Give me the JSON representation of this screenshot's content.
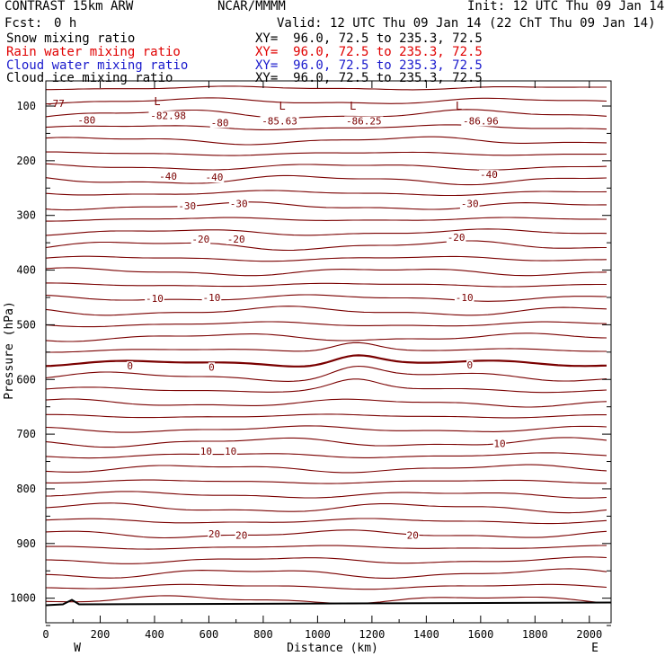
{
  "header": {
    "title": "CONTRAST 15km ARW",
    "center": "NCAR/MMMM",
    "init": "Init: 12 UTC Thu 09 Jan 14",
    "fcst_label": "Fcst:",
    "fcst_value": "0 h",
    "valid": "Valid: 12 UTC Thu 09 Jan 14 (22 ChT Thu 09 Jan 14)"
  },
  "fields": [
    {
      "name": "Snow mixing ratio",
      "xy": "XY=  96.0, 72.5 to 235.3, 72.5",
      "color": "#000000"
    },
    {
      "name": "Rain water mixing ratio",
      "xy": "XY=  96.0, 72.5 to 235.3, 72.5",
      "color": "#e00000"
    },
    {
      "name": "Cloud water mixing ratio",
      "xy": "XY=  96.0, 72.5 to 235.3, 72.5",
      "color": "#1a1acc"
    },
    {
      "name": "Cloud ice mixing ratio",
      "xy": "XY=  96.0, 72.5 to 235.3, 72.5",
      "color": "#000000"
    }
  ],
  "chart_data": {
    "type": "line",
    "xlabel": "Distance (km)",
    "ylabel": "Pressure (hPa)",
    "xlim": [
      0,
      2080
    ],
    "ylim": [
      1050,
      80
    ],
    "x_ticks": [
      "0",
      "200",
      "400",
      "600",
      "800",
      "1000",
      "1200",
      "1400",
      "1600",
      "1800",
      "2000"
    ],
    "y_ticks": [
      "100",
      "200",
      "300",
      "400",
      "500",
      "600",
      "700",
      "800",
      "900",
      "1000"
    ],
    "x_end_labels": {
      "left": "W",
      "right": "E"
    },
    "contour_color": "#7a0000",
    "contour_labels": [
      {
        "text": "-82.98",
        "x": 450,
        "p": 122
      },
      {
        "text": "-85.63",
        "x": 860,
        "p": 132
      },
      {
        "text": "-86.25",
        "x": 1170,
        "p": 132
      },
      {
        "text": "-86.96",
        "x": 1600,
        "p": 132
      },
      {
        "text": "-80",
        "x": 150,
        "p": 130
      },
      {
        "text": "-80",
        "x": 640,
        "p": 135
      },
      {
        "text": "-40",
        "x": 450,
        "p": 233
      },
      {
        "text": "-40",
        "x": 620,
        "p": 235
      },
      {
        "text": "-40",
        "x": 1630,
        "p": 230
      },
      {
        "text": "-30",
        "x": 520,
        "p": 287
      },
      {
        "text": "-30",
        "x": 710,
        "p": 283
      },
      {
        "text": "-30",
        "x": 1560,
        "p": 283
      },
      {
        "text": "-20",
        "x": 570,
        "p": 348
      },
      {
        "text": "-20",
        "x": 700,
        "p": 348
      },
      {
        "text": "-20",
        "x": 1510,
        "p": 345
      },
      {
        "text": "-10",
        "x": 400,
        "p": 457
      },
      {
        "text": "-10",
        "x": 610,
        "p": 455
      },
      {
        "text": "-10",
        "x": 1540,
        "p": 455
      },
      {
        "text": "0",
        "x": 310,
        "p": 580
      },
      {
        "text": "0",
        "x": 610,
        "p": 582
      },
      {
        "text": "0",
        "x": 1560,
        "p": 578
      },
      {
        "text": "10",
        "x": 590,
        "p": 736
      },
      {
        "text": "10",
        "x": 680,
        "p": 736
      },
      {
        "text": "10",
        "x": 1670,
        "p": 722
      },
      {
        "text": "20",
        "x": 620,
        "p": 887
      },
      {
        "text": "20",
        "x": 720,
        "p": 890
      },
      {
        "text": "20",
        "x": 1350,
        "p": 890
      }
    ],
    "low_markers": [
      {
        "text": "L",
        "x": 410,
        "p": 92
      },
      {
        "text": "L",
        "x": 870,
        "p": 100
      },
      {
        "text": "L",
        "x": 1130,
        "p": 100
      },
      {
        "text": "L",
        "x": 1520,
        "p": 100
      }
    ],
    "terrain_top_hPa": 1008,
    "top_label": "-77"
  }
}
